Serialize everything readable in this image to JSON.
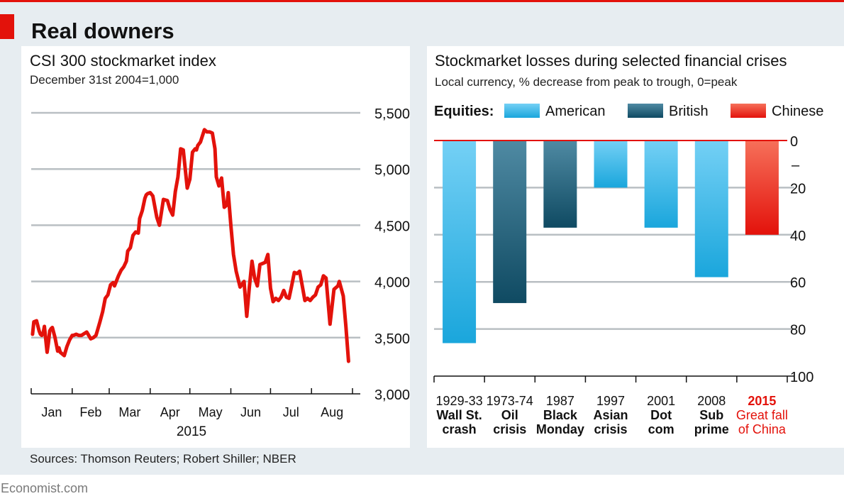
{
  "header": {
    "title": "Real downers",
    "source": "Sources: Thomson Reuters; Robert Shiller; NBER",
    "brand": "Economist.com",
    "accent_color": "#e3120b"
  },
  "chart_data": [
    {
      "type": "line",
      "title": "CSI 300 stockmarket index",
      "subtitle": "December 31st 2004=1,000",
      "xlabel": "2015",
      "ylabel": "",
      "ylim": [
        3000,
        5500
      ],
      "y_ticks": [
        3000,
        3500,
        4000,
        4500,
        5000,
        5500
      ],
      "y_tick_labels": [
        "3,000",
        "3,500",
        "4,000",
        "4,500",
        "5,000",
        "5,500"
      ],
      "month_labels": [
        "Jan",
        "Feb",
        "Mar",
        "Apr",
        "May",
        "Jun",
        "Jul",
        "Aug"
      ],
      "x_tick_days": [
        0,
        31,
        59,
        90,
        120,
        151,
        181,
        212,
        243
      ],
      "x_range_days": [
        0,
        243
      ],
      "series": [
        {
          "name": "CSI 300",
          "color": "#e3120b",
          "x": [
            1,
            2,
            4,
            6,
            7,
            8,
            9,
            10,
            12,
            13,
            14,
            15,
            16,
            18,
            20,
            21,
            22,
            25,
            27,
            29,
            31,
            32,
            34,
            36,
            38,
            42,
            45,
            47,
            49,
            50,
            52,
            54,
            56,
            58,
            60,
            62,
            63,
            66,
            68,
            70,
            72,
            73,
            75,
            77,
            79,
            81,
            82,
            84,
            86,
            87,
            88,
            90,
            92,
            95,
            97,
            100,
            103,
            105,
            107,
            109,
            111,
            113,
            115,
            118,
            120,
            122,
            124,
            125,
            126,
            128,
            131,
            133,
            135,
            137,
            139,
            140,
            142,
            144,
            146,
            148,
            149,
            151,
            153,
            155,
            158,
            161,
            163,
            165,
            167,
            169,
            171,
            173,
            175,
            177,
            179,
            181,
            183,
            185,
            187,
            189,
            191,
            193,
            195,
            197,
            199,
            201,
            203,
            205,
            207,
            209,
            211,
            213,
            215,
            217,
            219,
            221,
            223,
            226,
            229,
            232,
            233,
            236,
            238,
            240
          ],
          "values": [
            3530,
            3640,
            3650,
            3560,
            3530,
            3520,
            3540,
            3600,
            3370,
            3450,
            3560,
            3580,
            3590,
            3500,
            3380,
            3410,
            3370,
            3340,
            3420,
            3480,
            3520,
            3520,
            3530,
            3520,
            3520,
            3550,
            3490,
            3500,
            3520,
            3560,
            3640,
            3730,
            3850,
            3880,
            3970,
            3990,
            3960,
            4050,
            4100,
            4130,
            4180,
            4270,
            4300,
            4410,
            4440,
            4430,
            4560,
            4630,
            4740,
            4770,
            4780,
            4790,
            4760,
            4570,
            4500,
            4730,
            4720,
            4640,
            4590,
            4800,
            4930,
            5180,
            5170,
            4830,
            4910,
            5150,
            5180,
            5170,
            5210,
            5240,
            5350,
            5330,
            5330,
            5320,
            5180,
            4930,
            4850,
            4920,
            4660,
            4680,
            4790,
            4500,
            4240,
            4090,
            3950,
            4000,
            3690,
            3950,
            4180,
            4030,
            3960,
            4150,
            4160,
            4170,
            4240,
            3940,
            3820,
            3850,
            3830,
            3860,
            3920,
            3860,
            3850,
            3960,
            4080,
            4070,
            4090,
            3960,
            3830,
            3850,
            3830,
            3860,
            3880,
            3950,
            3970,
            4050,
            4030,
            3620,
            3930,
            3960,
            4000,
            3870,
            3600,
            3290
          ]
        }
      ]
    },
    {
      "type": "bar",
      "title": "Stockmarket losses during selected financial crises",
      "subtitle": "Local currency, % decrease from peak to trough, 0=peak",
      "legend_title": "Equities:",
      "legend_position": "top",
      "ylim": [
        0,
        100
      ],
      "y_ticks": [
        0,
        20,
        40,
        60,
        80,
        100
      ],
      "y_tick_labels": [
        "0",
        "20",
        "40",
        "60",
        "80",
        "100"
      ],
      "y_minus_label": "–",
      "legend": [
        {
          "name": "American",
          "color": "#2eb4e6"
        },
        {
          "name": "British",
          "color": "#1b6480"
        },
        {
          "name": "Chinese",
          "color": "#ef3b2c"
        }
      ],
      "categories": [
        {
          "year": "1929-33",
          "line1": "Wall St.",
          "line2": "crash",
          "group": "American",
          "highlight": false
        },
        {
          "year": "1973-74",
          "line1": "Oil",
          "line2": "crisis",
          "group": "British",
          "highlight": false
        },
        {
          "year": "1987",
          "line1": "Black",
          "line2": "Monday",
          "group": "British",
          "highlight": false
        },
        {
          "year": "1997",
          "line1": "Asian",
          "line2": "crisis",
          "group": "American",
          "highlight": false
        },
        {
          "year": "2001",
          "line1": "Dot",
          "line2": "com",
          "group": "American",
          "highlight": false
        },
        {
          "year": "2008",
          "line1": "Sub",
          "line2": "prime",
          "group": "American",
          "highlight": false
        },
        {
          "year": "2015",
          "line1": "Great fall",
          "line2": "of China",
          "group": "Chinese",
          "highlight": true
        }
      ],
      "values": [
        86,
        69,
        37,
        20,
        37,
        58,
        40
      ]
    }
  ]
}
